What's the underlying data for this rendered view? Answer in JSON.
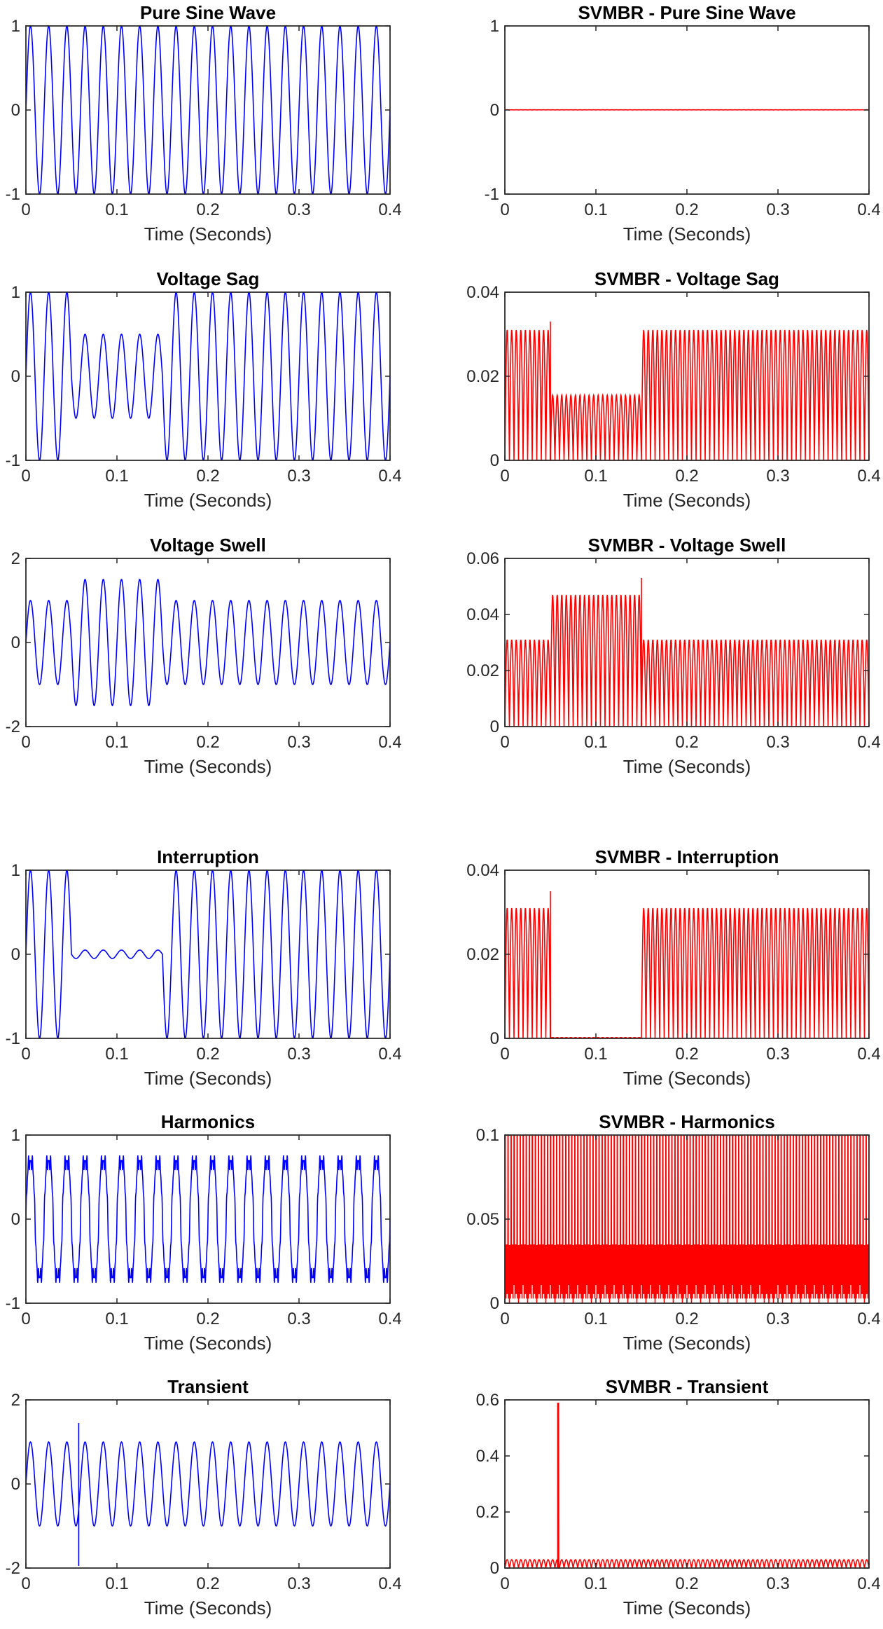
{
  "figure": {
    "x_common": {
      "xlabel": "Time (Seconds)",
      "xlim": [
        0,
        0.4
      ],
      "xticks": [
        0,
        0.1,
        0.2,
        0.3,
        0.4
      ],
      "xtick_labels": [
        "0",
        "0.1",
        "0.2",
        "0.3",
        "0.4"
      ],
      "sample_rate_hz": 4000
    },
    "colors": {
      "signal": "#0000ff",
      "svmbr": "#ff0000",
      "axes": "#262626"
    }
  },
  "chart_data": [
    {
      "id": "p1",
      "type": "line",
      "title": "Pure Sine Wave",
      "xlabel": "Time (Seconds)",
      "xlim": [
        0,
        0.4
      ],
      "ylim": [
        -1,
        1
      ],
      "yticks": [
        -1,
        0,
        1
      ],
      "ytick_labels": [
        "-1",
        "0",
        "1"
      ],
      "color": "#0000ff",
      "series": [
        {
          "name": "Pure Sine Wave",
          "generator": {
            "kind": "sine",
            "freq_hz": 50,
            "segments": [
              {
                "t_start": 0,
                "t_end": 0.4,
                "amplitude": 1
              }
            ]
          }
        }
      ]
    },
    {
      "id": "p2",
      "type": "line",
      "title": "SVMBR - Pure Sine Wave",
      "xlabel": "Time (Seconds)",
      "xlim": [
        0,
        0.4
      ],
      "ylim": [
        -1,
        1
      ],
      "yticks": [
        -1,
        0,
        1
      ],
      "ytick_labels": [
        "-1",
        "0",
        "1"
      ],
      "color": "#ff0000",
      "series": [
        {
          "name": "SVMBR",
          "generator": {
            "kind": "svmbr",
            "freq_hz": 50,
            "segments": [
              {
                "t_start": 0,
                "t_end": 0.4,
                "amplitude": 0.003
              }
            ]
          }
        }
      ]
    },
    {
      "id": "p3",
      "type": "line",
      "title": "Voltage Sag",
      "xlabel": "Time (Seconds)",
      "xlim": [
        0,
        0.4
      ],
      "ylim": [
        -1,
        1
      ],
      "yticks": [
        -1,
        0,
        1
      ],
      "ytick_labels": [
        "-1",
        "0",
        "1"
      ],
      "color": "#0000ff",
      "series": [
        {
          "name": "Voltage Sag",
          "generator": {
            "kind": "sine",
            "freq_hz": 50,
            "segments": [
              {
                "t_start": 0,
                "t_end": 0.05,
                "amplitude": 1
              },
              {
                "t_start": 0.05,
                "t_end": 0.15,
                "amplitude": 0.5
              },
              {
                "t_start": 0.15,
                "t_end": 0.4,
                "amplitude": 1
              }
            ]
          }
        }
      ]
    },
    {
      "id": "p4",
      "type": "line",
      "title": "SVMBR - Voltage Sag",
      "xlabel": "Time (Seconds)",
      "xlim": [
        0,
        0.4
      ],
      "ylim": [
        0,
        0.04
      ],
      "yticks": [
        0,
        0.02,
        0.04
      ],
      "ytick_labels": [
        "0",
        "0.02",
        "0.04"
      ],
      "color": "#ff0000",
      "series": [
        {
          "name": "SVMBR",
          "generator": {
            "kind": "svmbr",
            "freq_hz": 50,
            "segments": [
              {
                "t_start": 0,
                "t_end": 0.05,
                "amplitude": 0.031
              },
              {
                "t_start": 0.05,
                "t_end": 0.15,
                "amplitude": 0.0155
              },
              {
                "t_start": 0.15,
                "t_end": 0.4,
                "amplitude": 0.031
              }
            ],
            "spikes": [
              {
                "t": 0.05,
                "value": 0.033
              }
            ]
          }
        }
      ]
    },
    {
      "id": "p5",
      "type": "line",
      "title": "Voltage Swell",
      "xlabel": "Time (Seconds)",
      "xlim": [
        0,
        0.4
      ],
      "ylim": [
        -2,
        2
      ],
      "yticks": [
        -2,
        0,
        2
      ],
      "ytick_labels": [
        "-2",
        "0",
        "2"
      ],
      "color": "#0000ff",
      "series": [
        {
          "name": "Voltage Swell",
          "generator": {
            "kind": "sine",
            "freq_hz": 50,
            "segments": [
              {
                "t_start": 0,
                "t_end": 0.05,
                "amplitude": 1
              },
              {
                "t_start": 0.05,
                "t_end": 0.15,
                "amplitude": 1.5
              },
              {
                "t_start": 0.15,
                "t_end": 0.4,
                "amplitude": 1
              }
            ]
          }
        }
      ]
    },
    {
      "id": "p6",
      "type": "line",
      "title": "SVMBR - Voltage Swell",
      "xlabel": "Time (Seconds)",
      "xlim": [
        0,
        0.4
      ],
      "ylim": [
        0,
        0.06
      ],
      "yticks": [
        0,
        0.02,
        0.04,
        0.06
      ],
      "ytick_labels": [
        "0",
        "0.02",
        "0.04",
        "0.06"
      ],
      "color": "#ff0000",
      "series": [
        {
          "name": "SVMBR",
          "generator": {
            "kind": "svmbr",
            "freq_hz": 50,
            "segments": [
              {
                "t_start": 0,
                "t_end": 0.05,
                "amplitude": 0.031
              },
              {
                "t_start": 0.05,
                "t_end": 0.15,
                "amplitude": 0.047
              },
              {
                "t_start": 0.15,
                "t_end": 0.4,
                "amplitude": 0.031
              }
            ],
            "spikes": [
              {
                "t": 0.15,
                "value": 0.053
              }
            ]
          }
        }
      ]
    },
    {
      "id": "p7",
      "type": "line",
      "title": "Interruption",
      "xlabel": "Time (Seconds)",
      "xlim": [
        0,
        0.4
      ],
      "ylim": [
        -1,
        1
      ],
      "yticks": [
        -1,
        0,
        1
      ],
      "ytick_labels": [
        "-1",
        "0",
        "1"
      ],
      "color": "#0000ff",
      "series": [
        {
          "name": "Interruption",
          "generator": {
            "kind": "sine",
            "freq_hz": 50,
            "segments": [
              {
                "t_start": 0,
                "t_end": 0.05,
                "amplitude": 1
              },
              {
                "t_start": 0.05,
                "t_end": 0.15,
                "amplitude": 0.05
              },
              {
                "t_start": 0.15,
                "t_end": 0.4,
                "amplitude": 1
              }
            ]
          }
        }
      ]
    },
    {
      "id": "p8",
      "type": "line",
      "title": "SVMBR - Interruption",
      "xlabel": "Time (Seconds)",
      "xlim": [
        0,
        0.4
      ],
      "ylim": [
        0,
        0.04
      ],
      "yticks": [
        0,
        0.02,
        0.04
      ],
      "ytick_labels": [
        "0",
        "0.02",
        "0.04"
      ],
      "color": "#ff0000",
      "series": [
        {
          "name": "SVMBR",
          "generator": {
            "kind": "svmbr",
            "freq_hz": 50,
            "segments": [
              {
                "t_start": 0,
                "t_end": 0.05,
                "amplitude": 0.031
              },
              {
                "t_start": 0.05,
                "t_end": 0.15,
                "amplitude": 0.0002
              },
              {
                "t_start": 0.15,
                "t_end": 0.4,
                "amplitude": 0.031
              }
            ],
            "spikes": [
              {
                "t": 0.05,
                "value": 0.035
              }
            ]
          }
        }
      ]
    },
    {
      "id": "p9",
      "type": "line",
      "title": "Harmonics",
      "xlabel": "Time (Seconds)",
      "xlim": [
        0,
        0.4
      ],
      "ylim": [
        -1,
        1
      ],
      "yticks": [
        -1,
        0,
        1
      ],
      "ytick_labels": [
        "-1",
        "0",
        "1"
      ],
      "color": "#0000ff",
      "series": [
        {
          "name": "Harmonics",
          "generator": {
            "kind": "harmonic",
            "freq_hz": 50,
            "components": [
              {
                "order": 1,
                "amplitude": 0.78
              },
              {
                "order": 3,
                "amplitude": 0.12
              },
              {
                "order": 9,
                "amplitude": 0.06
              },
              {
                "order": 15,
                "amplitude": 0.04
              }
            ],
            "segments": [
              {
                "t_start": 0,
                "t_end": 0.4,
                "amplitude": 1
              }
            ]
          }
        }
      ]
    },
    {
      "id": "p10",
      "type": "line",
      "title": "SVMBR - Harmonics",
      "xlabel": "Time (Seconds)",
      "xlim": [
        0,
        0.4
      ],
      "ylim": [
        0,
        0.1
      ],
      "yticks": [
        0,
        0.05,
        0.1
      ],
      "ytick_labels": [
        "0",
        "0.05",
        "0.1"
      ],
      "color": "#ff0000",
      "series": [
        {
          "name": "SVMBR",
          "generator": {
            "kind": "svmbr_harmonic",
            "freq_hz": 50,
            "pulse_peak": 0.1,
            "band_level": 0.035,
            "segments": [
              {
                "t_start": 0,
                "t_end": 0.4,
                "amplitude": 0.035
              }
            ]
          }
        }
      ]
    },
    {
      "id": "p11",
      "type": "line",
      "title": "Transient",
      "xlabel": "Time (Seconds)",
      "xlim": [
        0,
        0.4
      ],
      "ylim": [
        -2,
        2
      ],
      "yticks": [
        -2,
        0,
        2
      ],
      "ytick_labels": [
        "-2",
        "0",
        "2"
      ],
      "color": "#0000ff",
      "series": [
        {
          "name": "Transient",
          "generator": {
            "kind": "sine",
            "freq_hz": 50,
            "segments": [
              {
                "t_start": 0,
                "t_end": 0.4,
                "amplitude": 1
              }
            ],
            "transient": {
              "t": 0.058,
              "high": 1.45,
              "low": -1.95
            }
          }
        }
      ]
    },
    {
      "id": "p12",
      "type": "line",
      "title": "SVMBR - Transient",
      "xlabel": "Time (Seconds)",
      "xlim": [
        0,
        0.4
      ],
      "ylim": [
        0,
        0.6
      ],
      "yticks": [
        0,
        0.2,
        0.4,
        0.6
      ],
      "ytick_labels": [
        "0",
        "0.2",
        "0.4",
        "0.6"
      ],
      "color": "#ff0000",
      "series": [
        {
          "name": "SVMBR",
          "generator": {
            "kind": "svmbr",
            "freq_hz": 50,
            "segments": [
              {
                "t_start": 0,
                "t_end": 0.4,
                "amplitude": 0.03
              }
            ],
            "spikes": [
              {
                "t": 0.058,
                "value": 0.59
              },
              {
                "t": 0.0585,
                "value": 0.59
              },
              {
                "t": 0.059,
                "value": 0.59
              }
            ]
          }
        }
      ]
    }
  ]
}
